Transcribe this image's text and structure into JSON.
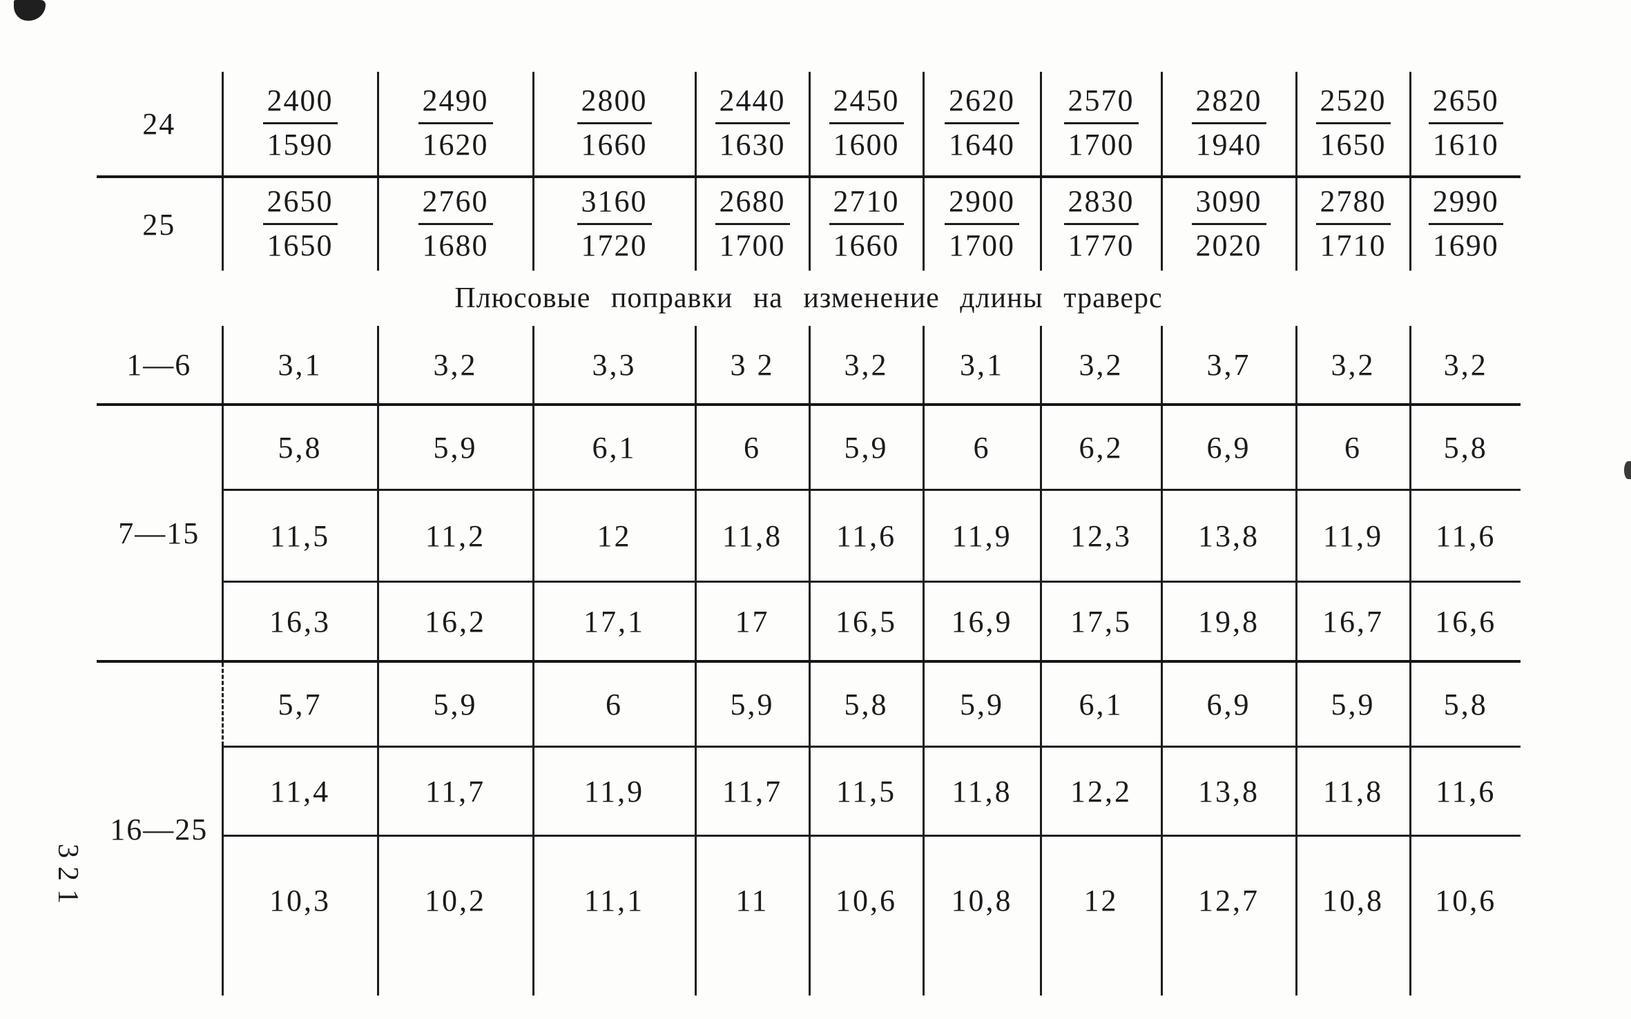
{
  "page_number": "321",
  "heading": "Плюсовые поправки на изменение длины траверс",
  "upper_table": {
    "rows": [
      {
        "label": "24",
        "cells": [
          {
            "num": "2400",
            "den": "1590"
          },
          {
            "num": "2490",
            "den": "1620"
          },
          {
            "num": "2800",
            "den": "1660"
          },
          {
            "num": "2440",
            "den": "1630"
          },
          {
            "num": "2450",
            "den": "1600"
          },
          {
            "num": "2620",
            "den": "1640"
          },
          {
            "num": "2570",
            "den": "1700"
          },
          {
            "num": "2820",
            "den": "1940"
          },
          {
            "num": "2520",
            "den": "1650"
          },
          {
            "num": "2650",
            "den": "1610"
          }
        ]
      },
      {
        "label": "25",
        "cells": [
          {
            "num": "2650",
            "den": "1650"
          },
          {
            "num": "2760",
            "den": "1680"
          },
          {
            "num": "3160",
            "den": "1720"
          },
          {
            "num": "2680",
            "den": "1700"
          },
          {
            "num": "2710",
            "den": "1660"
          },
          {
            "num": "2900",
            "den": "1700"
          },
          {
            "num": "2830",
            "den": "1770"
          },
          {
            "num": "3090",
            "den": "2020"
          },
          {
            "num": "2780",
            "den": "1710"
          },
          {
            "num": "2990",
            "den": "1690"
          }
        ]
      }
    ]
  },
  "corrections_table": {
    "groups": [
      {
        "label": "1—6",
        "rows": [
          [
            "3,1",
            "3,2",
            "3,3",
            "3 2",
            "3,2",
            "3,1",
            "3,2",
            "3,7",
            "3,2",
            "3,2"
          ]
        ]
      },
      {
        "label": "7—15",
        "rows": [
          [
            "5,8",
            "5,9",
            "6,1",
            "6",
            "5,9",
            "6",
            "6,2",
            "6,9",
            "6",
            "5,8"
          ],
          [
            "11,5",
            "11,2",
            "12",
            "11,8",
            "11,6",
            "11,9",
            "12,3",
            "13,8",
            "11,9",
            "11,6"
          ],
          [
            "16,3",
            "16,2",
            "17,1",
            "17",
            "16,5",
            "16,9",
            "17,5",
            "19,8",
            "16,7",
            "16,6"
          ]
        ]
      },
      {
        "label": "16—25",
        "rows": [
          [
            "5,7",
            "5,9",
            "6",
            "5,9",
            "5,8",
            "5,9",
            "6,1",
            "6,9",
            "5,9",
            "5,8"
          ],
          [
            "11,4",
            "11,7",
            "11,9",
            "11,7",
            "11,5",
            "11,8",
            "12,2",
            "13,8",
            "11,8",
            "11,6"
          ],
          [
            "10,3",
            "10,2",
            "11,1",
            "11",
            "10,6",
            "10,8",
            "12",
            "12,7",
            "10,8",
            "10,6"
          ]
        ]
      }
    ]
  }
}
